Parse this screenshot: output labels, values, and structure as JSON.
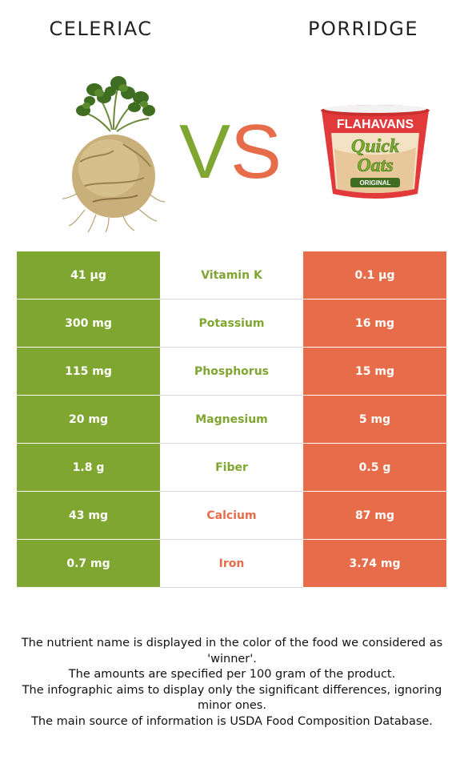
{
  "header": {
    "left_food": "CELERIAC",
    "right_food": "PORRIDGE",
    "vs_left": "V",
    "vs_right": "S"
  },
  "colors": {
    "left": "#7ea631",
    "right": "#e66c4a"
  },
  "images": {
    "left": "celeriac-root-illustration",
    "right": "porridge-cup-illustration",
    "right_cup_text": [
      "FLAHAVANS",
      "Quick",
      "Oats",
      "ORIGINAL"
    ]
  },
  "rows": [
    {
      "nutrient": "Vitamin K",
      "left": "41 µg",
      "right": "0.1 µg",
      "winner": "left"
    },
    {
      "nutrient": "Potassium",
      "left": "300 mg",
      "right": "16 mg",
      "winner": "left"
    },
    {
      "nutrient": "Phosphorus",
      "left": "115 mg",
      "right": "15 mg",
      "winner": "left"
    },
    {
      "nutrient": "Magnesium",
      "left": "20 mg",
      "right": "5 mg",
      "winner": "left"
    },
    {
      "nutrient": "Fiber",
      "left": "1.8 g",
      "right": "0.5 g",
      "winner": "left"
    },
    {
      "nutrient": "Calcium",
      "left": "43 mg",
      "right": "87 mg",
      "winner": "right"
    },
    {
      "nutrient": "Iron",
      "left": "0.7 mg",
      "right": "3.74 mg",
      "winner": "right"
    }
  ],
  "notes": [
    "The nutrient name is displayed in the color of the food we considered as 'winner'.",
    "The amounts are specified per 100 gram of the product.",
    "The infographic aims to display only the significant differences, ignoring minor ones.",
    "The main source of information is USDA Food Composition Database."
  ]
}
